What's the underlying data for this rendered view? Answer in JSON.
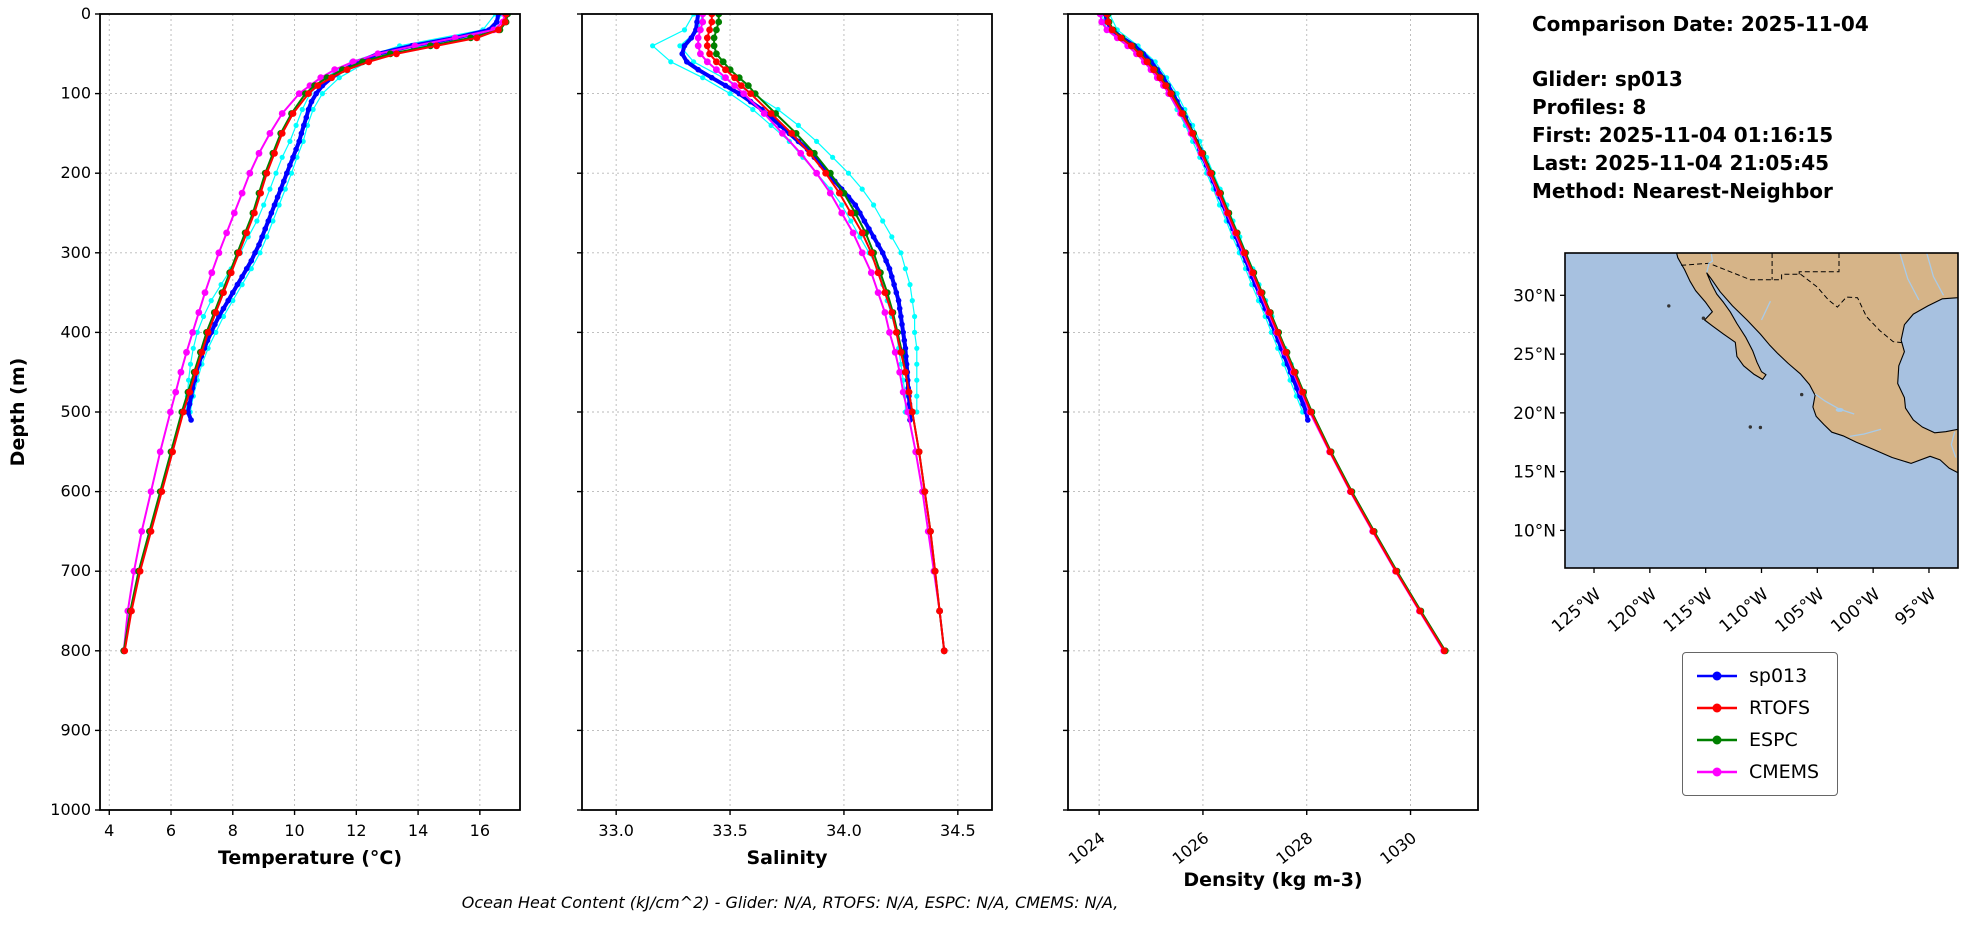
{
  "info": {
    "comparison_date": "Comparison Date: 2025-11-04",
    "glider": "Glider: sp013",
    "profiles": "Profiles: 8",
    "first": "First: 2025-11-04 01:16:15",
    "last": "Last: 2025-11-04 21:05:45",
    "method": "Method: Nearest-Neighbor"
  },
  "legend": [
    {
      "label": "sp013",
      "color": "#0000FF"
    },
    {
      "label": "RTOFS",
      "color": "#FF0000"
    },
    {
      "label": "ESPC",
      "color": "#008000"
    },
    {
      "label": "CMEMS",
      "color": "#FF00FF"
    }
  ],
  "footer": {
    "text": "Ocean Heat Content (kJ/cm^2) - Glider: N/A,  RTOFS: N/A,  ESPC: N/A,  CMEMS: N/A,"
  },
  "map": {
    "ocean_color": "#a7c1e0",
    "land_color": "#d6b488",
    "river_color": "#a9cbe8",
    "lat_ticks": [
      {
        "value": 30,
        "label": "30°N"
      },
      {
        "value": 25,
        "label": "25°N"
      },
      {
        "value": 20,
        "label": "20°N"
      },
      {
        "value": 15,
        "label": "15°N"
      },
      {
        "value": 10,
        "label": "10°N"
      }
    ],
    "lon_ticks": [
      {
        "value": -125,
        "label": "125°W"
      },
      {
        "value": -120,
        "label": "120°W"
      },
      {
        "value": -115,
        "label": "115°W"
      },
      {
        "value": -110,
        "label": "110°W"
      },
      {
        "value": -105,
        "label": "105°W"
      },
      {
        "value": -100,
        "label": "100°W"
      },
      {
        "value": -95,
        "label": "95°W"
      }
    ]
  },
  "chart_data": {
    "type": "line",
    "depth_axis": {
      "label": "Depth (m)",
      "lim": [
        0,
        1000
      ],
      "ticks": [
        0,
        100,
        200,
        300,
        400,
        500,
        600,
        700,
        800,
        900,
        1000
      ]
    },
    "charts": [
      {
        "xlabel": "Temperature (°C)",
        "xlim": [
          3.7,
          17.3
        ],
        "xticks": [
          4,
          6,
          8,
          10,
          12,
          14,
          16
        ],
        "xtick_labels": [
          "4",
          "6",
          "8",
          "10",
          "12",
          "14",
          "16"
        ],
        "rotate_xtick_labels": false,
        "value_key": "temperature"
      },
      {
        "xlabel": "Salinity",
        "xlim": [
          32.85,
          34.65
        ],
        "xticks": [
          33.0,
          33.5,
          34.0,
          34.5
        ],
        "xtick_labels": [
          "33.0",
          "33.5",
          "34.0",
          "34.5"
        ],
        "rotate_xtick_labels": false,
        "value_key": "salinity"
      },
      {
        "xlabel": "Density (kg m-3)",
        "xlim": [
          1023.4,
          1031.3
        ],
        "xticks": [
          1024,
          1026,
          1028,
          1030
        ],
        "xtick_labels": [
          "1024",
          "1026",
          "1028",
          "1030"
        ],
        "rotate_xtick_labels": true,
        "value_key": "density"
      }
    ],
    "series": [
      {
        "name": "sp013-profile-1",
        "color": "#00FFFF",
        "lw": 1.2,
        "r": 2.6,
        "depths": [
          0,
          20,
          40,
          60,
          80,
          100,
          120,
          140,
          160,
          180,
          200,
          220,
          240,
          260,
          280,
          300,
          320,
          340,
          360,
          380,
          400,
          420,
          440,
          460,
          480,
          500
        ],
        "temperature": [
          16.7,
          16.45,
          14.2,
          12.35,
          11.45,
          10.9,
          10.6,
          10.42,
          10.28,
          10.08,
          9.9,
          9.7,
          9.5,
          9.3,
          9.1,
          8.88,
          8.6,
          8.3,
          8.0,
          7.7,
          7.45,
          7.2,
          7.0,
          6.85,
          6.72,
          6.62
        ],
        "salinity": [
          33.38,
          33.36,
          33.28,
          33.34,
          33.47,
          33.6,
          33.71,
          33.8,
          33.88,
          33.95,
          34.02,
          34.08,
          34.13,
          34.17,
          34.21,
          34.25,
          34.27,
          34.29,
          34.3,
          34.31,
          34.31,
          34.32,
          34.32,
          34.32,
          34.32,
          34.32
        ],
        "density": [
          1024.2,
          1024.35,
          1024.75,
          1025.08,
          1025.3,
          1025.5,
          1025.65,
          1025.8,
          1025.94,
          1026.07,
          1026.2,
          1026.33,
          1026.46,
          1026.58,
          1026.71,
          1026.83,
          1026.96,
          1027.08,
          1027.21,
          1027.33,
          1027.46,
          1027.58,
          1027.7,
          1027.82,
          1027.94,
          1028.06
        ]
      },
      {
        "name": "sp013-profile-2",
        "color": "#00FFFF",
        "lw": 1.2,
        "r": 2.6,
        "depths": [
          0,
          20,
          40,
          60,
          80,
          100,
          120,
          140,
          160,
          180,
          200,
          220,
          240,
          260,
          280,
          300,
          320,
          340,
          360,
          380,
          400,
          420,
          440,
          460,
          480,
          500
        ],
        "temperature": [
          16.5,
          16.1,
          13.4,
          11.85,
          11.0,
          10.5,
          10.25,
          10.05,
          9.85,
          9.6,
          9.4,
          9.2,
          9.0,
          8.78,
          8.5,
          8.25,
          7.95,
          7.62,
          7.3,
          7.05,
          6.85,
          6.72,
          6.63,
          6.57,
          6.53,
          6.5
        ],
        "salinity": [
          33.34,
          33.3,
          33.16,
          33.24,
          33.38,
          33.5,
          33.6,
          33.68,
          33.76,
          33.82,
          33.88,
          33.94,
          33.99,
          34.03,
          34.07,
          34.11,
          34.15,
          34.17,
          34.19,
          34.21,
          34.23,
          34.24,
          34.25,
          34.26,
          34.27,
          34.27
        ],
        "density": [
          1024.05,
          1024.15,
          1024.6,
          1024.92,
          1025.15,
          1025.34,
          1025.5,
          1025.66,
          1025.8,
          1025.94,
          1026.07,
          1026.2,
          1026.32,
          1026.45,
          1026.57,
          1026.7,
          1026.82,
          1026.94,
          1027.07,
          1027.2,
          1027.32,
          1027.44,
          1027.56,
          1027.68,
          1027.8,
          1027.92
        ]
      },
      {
        "name": "sp013",
        "color": "#0000FF",
        "lw": 4,
        "r": 2.8,
        "depths": [
          0,
          10,
          20,
          30,
          40,
          50,
          60,
          70,
          80,
          90,
          100,
          110,
          120,
          130,
          140,
          150,
          160,
          170,
          180,
          190,
          200,
          210,
          220,
          230,
          240,
          250,
          260,
          270,
          280,
          290,
          300,
          310,
          320,
          330,
          340,
          350,
          360,
          370,
          380,
          390,
          400,
          410,
          420,
          430,
          440,
          450,
          460,
          470,
          480,
          490,
          500,
          510
        ],
        "temperature": [
          16.6,
          16.55,
          16.3,
          15.2,
          13.8,
          12.7,
          12.1,
          11.6,
          11.2,
          10.9,
          10.7,
          10.55,
          10.45,
          10.38,
          10.3,
          10.22,
          10.15,
          10.05,
          9.95,
          9.85,
          9.75,
          9.65,
          9.55,
          9.45,
          9.35,
          9.25,
          9.15,
          9.05,
          8.95,
          8.85,
          8.72,
          8.6,
          8.45,
          8.3,
          8.15,
          8.0,
          7.85,
          7.7,
          7.55,
          7.42,
          7.3,
          7.18,
          7.08,
          6.98,
          6.9,
          6.82,
          6.76,
          6.7,
          6.65,
          6.6,
          6.55,
          6.65
        ],
        "salinity": [
          33.36,
          33.355,
          33.35,
          33.33,
          33.3,
          33.29,
          33.31,
          33.36,
          33.42,
          33.48,
          33.54,
          33.59,
          33.64,
          33.68,
          33.72,
          33.76,
          33.8,
          33.84,
          33.87,
          33.9,
          33.93,
          33.96,
          33.99,
          34.02,
          34.05,
          34.07,
          34.09,
          34.11,
          34.13,
          34.15,
          34.17,
          34.185,
          34.2,
          34.21,
          34.22,
          34.23,
          34.24,
          34.245,
          34.25,
          34.255,
          34.26,
          34.265,
          34.27,
          34.272,
          34.275,
          34.278,
          34.28,
          34.282,
          34.285,
          34.288,
          34.29,
          34.29
        ],
        "density": [
          1024.12,
          1024.15,
          1024.25,
          1024.45,
          1024.68,
          1024.85,
          1025.0,
          1025.12,
          1025.23,
          1025.33,
          1025.42,
          1025.5,
          1025.58,
          1025.66,
          1025.73,
          1025.8,
          1025.87,
          1025.94,
          1026.0,
          1026.07,
          1026.13,
          1026.2,
          1026.26,
          1026.33,
          1026.39,
          1026.45,
          1026.51,
          1026.58,
          1026.64,
          1026.7,
          1026.76,
          1026.83,
          1026.89,
          1026.95,
          1027.01,
          1027.08,
          1027.14,
          1027.2,
          1027.27,
          1027.33,
          1027.39,
          1027.45,
          1027.51,
          1027.57,
          1027.63,
          1027.69,
          1027.75,
          1027.81,
          1027.87,
          1027.93,
          1027.99,
          1028.02
        ]
      },
      {
        "name": "CMEMS",
        "color": "#FF00FF",
        "lw": 2,
        "r": 3.4,
        "depths": [
          0,
          10,
          20,
          30,
          40,
          50,
          60,
          70,
          80,
          90,
          100,
          125,
          150,
          175,
          200,
          225,
          250,
          275,
          300,
          325,
          350,
          375,
          400,
          425,
          450,
          475,
          500,
          550,
          600,
          650,
          700,
          750,
          800
        ],
        "temperature": [
          16.8,
          16.75,
          16.45,
          15.2,
          13.9,
          12.7,
          11.9,
          11.3,
          10.85,
          10.5,
          10.15,
          9.6,
          9.2,
          8.85,
          8.55,
          8.3,
          8.05,
          7.8,
          7.55,
          7.32,
          7.1,
          6.9,
          6.7,
          6.5,
          6.32,
          6.15,
          5.98,
          5.65,
          5.35,
          5.05,
          4.8,
          4.6,
          4.47
        ],
        "salinity": [
          33.38,
          33.38,
          33.37,
          33.36,
          33.36,
          33.37,
          33.4,
          33.44,
          33.48,
          33.52,
          33.56,
          33.65,
          33.73,
          33.81,
          33.88,
          33.94,
          33.99,
          34.04,
          34.08,
          34.12,
          34.15,
          34.18,
          34.2,
          34.225,
          34.245,
          34.26,
          34.28,
          34.315,
          34.345,
          34.37,
          34.395,
          34.42,
          34.44
        ],
        "density": [
          1024.02,
          1024.05,
          1024.15,
          1024.35,
          1024.55,
          1024.72,
          1024.87,
          1025.0,
          1025.12,
          1025.24,
          1025.34,
          1025.57,
          1025.77,
          1025.96,
          1026.13,
          1026.3,
          1026.46,
          1026.62,
          1026.78,
          1026.94,
          1027.1,
          1027.26,
          1027.42,
          1027.58,
          1027.74,
          1027.9,
          1028.06,
          1028.44,
          1028.84,
          1029.27,
          1029.71,
          1030.17,
          1030.64
        ]
      },
      {
        "name": "ESPC",
        "color": "#008000",
        "lw": 2,
        "r": 3.4,
        "depths": [
          0,
          10,
          20,
          30,
          40,
          50,
          60,
          70,
          80,
          90,
          100,
          125,
          150,
          175,
          200,
          225,
          250,
          275,
          300,
          325,
          350,
          375,
          400,
          425,
          450,
          475,
          500,
          550,
          600,
          650,
          700,
          750,
          800
        ],
        "temperature": [
          16.9,
          16.85,
          16.65,
          15.7,
          14.4,
          13.1,
          12.2,
          11.55,
          11.05,
          10.65,
          10.35,
          9.9,
          9.55,
          9.3,
          9.05,
          8.85,
          8.65,
          8.4,
          8.15,
          7.9,
          7.65,
          7.4,
          7.15,
          6.95,
          6.75,
          6.55,
          6.35,
          6.0,
          5.65,
          5.3,
          4.95,
          4.68,
          4.47
        ],
        "salinity": [
          33.45,
          33.45,
          33.44,
          33.43,
          33.43,
          33.44,
          33.47,
          33.5,
          33.54,
          33.58,
          33.61,
          33.7,
          33.79,
          33.87,
          33.94,
          34.0,
          34.05,
          34.095,
          34.13,
          34.16,
          34.19,
          34.215,
          34.235,
          34.255,
          34.27,
          34.285,
          34.3,
          34.33,
          34.355,
          34.38,
          34.4,
          34.42,
          34.44
        ],
        "density": [
          1024.17,
          1024.19,
          1024.27,
          1024.44,
          1024.64,
          1024.8,
          1024.94,
          1025.07,
          1025.19,
          1025.3,
          1025.4,
          1025.62,
          1025.82,
          1026.0,
          1026.17,
          1026.34,
          1026.5,
          1026.66,
          1026.82,
          1026.98,
          1027.14,
          1027.3,
          1027.46,
          1027.62,
          1027.78,
          1027.94,
          1028.1,
          1028.47,
          1028.87,
          1029.3,
          1029.74,
          1030.2,
          1030.67
        ]
      },
      {
        "name": "RTOFS",
        "color": "#FF0000",
        "lw": 2,
        "r": 3.4,
        "depths": [
          0,
          10,
          20,
          30,
          40,
          50,
          60,
          70,
          80,
          90,
          100,
          125,
          150,
          175,
          200,
          225,
          250,
          275,
          300,
          325,
          350,
          375,
          400,
          425,
          450,
          475,
          500,
          550,
          600,
          650,
          700,
          750,
          800
        ],
        "temperature": [
          16.85,
          16.82,
          16.6,
          15.9,
          14.6,
          13.3,
          12.4,
          11.7,
          11.2,
          10.75,
          10.45,
          9.95,
          9.6,
          9.35,
          9.1,
          8.9,
          8.7,
          8.45,
          8.2,
          7.95,
          7.7,
          7.45,
          7.2,
          7.0,
          6.8,
          6.6,
          6.4,
          6.05,
          5.7,
          5.35,
          5.0,
          4.72,
          4.5
        ],
        "salinity": [
          33.42,
          33.42,
          33.41,
          33.4,
          33.4,
          33.41,
          33.44,
          33.48,
          33.52,
          33.55,
          33.59,
          33.68,
          33.77,
          33.85,
          33.92,
          33.98,
          34.03,
          34.08,
          34.12,
          34.15,
          34.18,
          34.21,
          34.23,
          34.25,
          34.27,
          34.285,
          34.3,
          34.33,
          34.355,
          34.38,
          34.4,
          34.42,
          34.44
        ],
        "density": [
          1024.15,
          1024.17,
          1024.25,
          1024.42,
          1024.62,
          1024.78,
          1024.92,
          1025.05,
          1025.17,
          1025.28,
          1025.38,
          1025.6,
          1025.8,
          1025.98,
          1026.15,
          1026.32,
          1026.48,
          1026.64,
          1026.8,
          1026.96,
          1027.12,
          1027.28,
          1027.44,
          1027.6,
          1027.76,
          1027.92,
          1028.08,
          1028.45,
          1028.85,
          1029.28,
          1029.72,
          1030.18,
          1030.65
        ]
      }
    ]
  }
}
